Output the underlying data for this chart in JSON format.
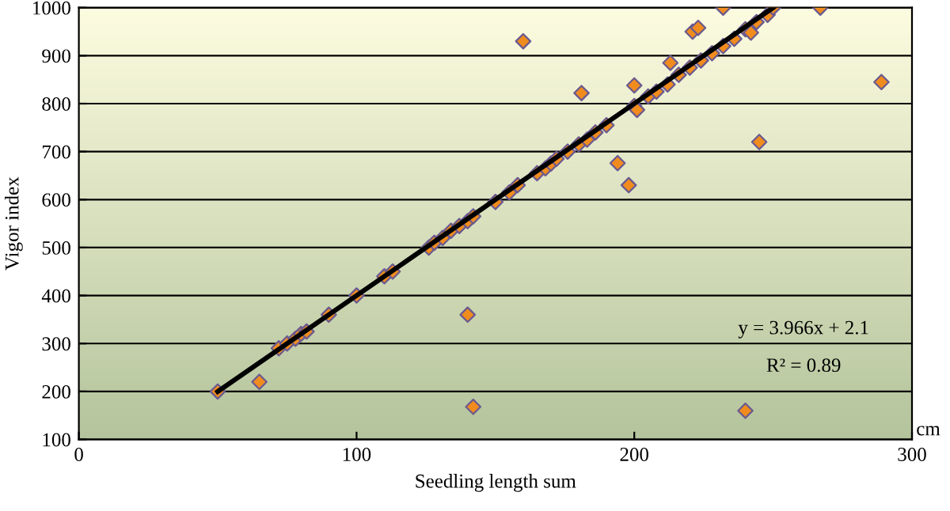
{
  "chart_data": {
    "type": "scatter",
    "xlabel": "Seedling length sum",
    "ylabel": "Vigor index",
    "xlim": [
      0,
      300
    ],
    "xticks": [
      0,
      100,
      200,
      300
    ],
    "ylim": [
      100,
      1000
    ],
    "yticks": [
      100,
      200,
      300,
      400,
      500,
      600,
      700,
      800,
      900,
      1000
    ],
    "grid": "y",
    "series": [
      {
        "marker": "diamond",
        "color": "#f08c1e",
        "x": [
          50,
          72,
          75,
          78,
          80,
          82,
          90,
          100,
          110,
          113,
          126,
          128,
          131,
          134,
          137,
          140,
          142,
          150,
          155,
          158,
          165,
          168,
          170,
          172,
          176,
          180,
          183,
          186,
          190,
          200,
          205,
          208,
          212,
          216,
          220,
          224,
          228,
          232,
          236,
          240,
          244,
          248,
          250,
          65,
          140,
          142,
          160,
          181,
          194,
          198,
          200,
          201,
          213,
          221,
          223,
          232,
          240,
          242,
          245,
          267,
          289
        ],
        "values": [
          200,
          290,
          300,
          310,
          320,
          325,
          360,
          400,
          440,
          450,
          500,
          510,
          520,
          535,
          545,
          555,
          565,
          595,
          615,
          630,
          655,
          665,
          675,
          685,
          700,
          715,
          725,
          740,
          755,
          795,
          815,
          825,
          840,
          860,
          875,
          890,
          905,
          920,
          935,
          955,
          970,
          985,
          1000,
          220,
          360,
          168,
          930,
          822,
          676,
          630,
          838,
          787,
          885,
          950,
          958,
          1000,
          160,
          948,
          720,
          1000,
          845
        ]
      },
      {
        "type": "line",
        "color": "#000000",
        "x": [
          50,
          250
        ],
        "values": [
          200,
          1000
        ]
      }
    ],
    "annotations": [
      "y = 3.966x + 2.1",
      "R² = 0.89",
      "cm"
    ]
  }
}
